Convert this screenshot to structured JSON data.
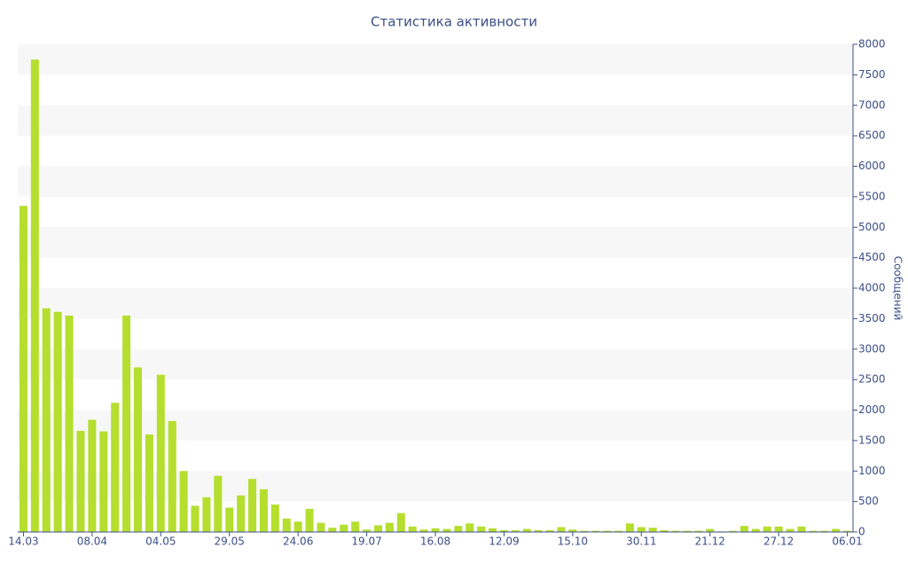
{
  "chart_data": {
    "type": "bar",
    "title": "Статистика активности",
    "y_axis_label": "Сообщений",
    "categories": [
      "14.03",
      null,
      null,
      null,
      null,
      null,
      "08.04",
      null,
      null,
      null,
      null,
      null,
      "04.05",
      null,
      null,
      null,
      null,
      null,
      "29.05",
      null,
      null,
      null,
      null,
      null,
      "24.06",
      null,
      null,
      null,
      null,
      null,
      "19.07",
      null,
      null,
      null,
      null,
      null,
      "16.08",
      null,
      null,
      null,
      null,
      null,
      "12.09",
      null,
      null,
      null,
      null,
      null,
      "15.10",
      null,
      null,
      null,
      null,
      null,
      "30.11",
      null,
      null,
      null,
      null,
      null,
      "21.12",
      null,
      null,
      null,
      null,
      null,
      "27.12",
      null,
      null,
      null,
      null,
      null,
      "06.01"
    ],
    "values": [
      5350,
      7750,
      3670,
      3610,
      3550,
      1660,
      1840,
      1650,
      2120,
      3550,
      2700,
      1600,
      2580,
      1820,
      1000,
      430,
      570,
      920,
      400,
      600,
      870,
      700,
      450,
      220,
      170,
      380,
      150,
      70,
      120,
      170,
      40,
      110,
      150,
      310,
      90,
      40,
      60,
      50,
      100,
      140,
      90,
      60,
      30,
      30,
      50,
      30,
      30,
      80,
      40,
      20,
      20,
      20,
      20,
      140,
      80,
      70,
      30,
      20,
      20,
      20,
      50,
      10,
      20,
      100,
      50,
      90,
      90,
      50,
      90,
      20,
      20,
      50,
      20
    ],
    "color": "#b5de2f",
    "ylim": [
      0,
      8000
    ],
    "yticks": [
      0,
      500,
      1000,
      1500,
      2000,
      2500,
      3000,
      3500,
      4000,
      4500,
      5000,
      5500,
      6000,
      6500,
      7000,
      7500,
      8000
    ],
    "axis_side": "right",
    "grid": "bands"
  }
}
